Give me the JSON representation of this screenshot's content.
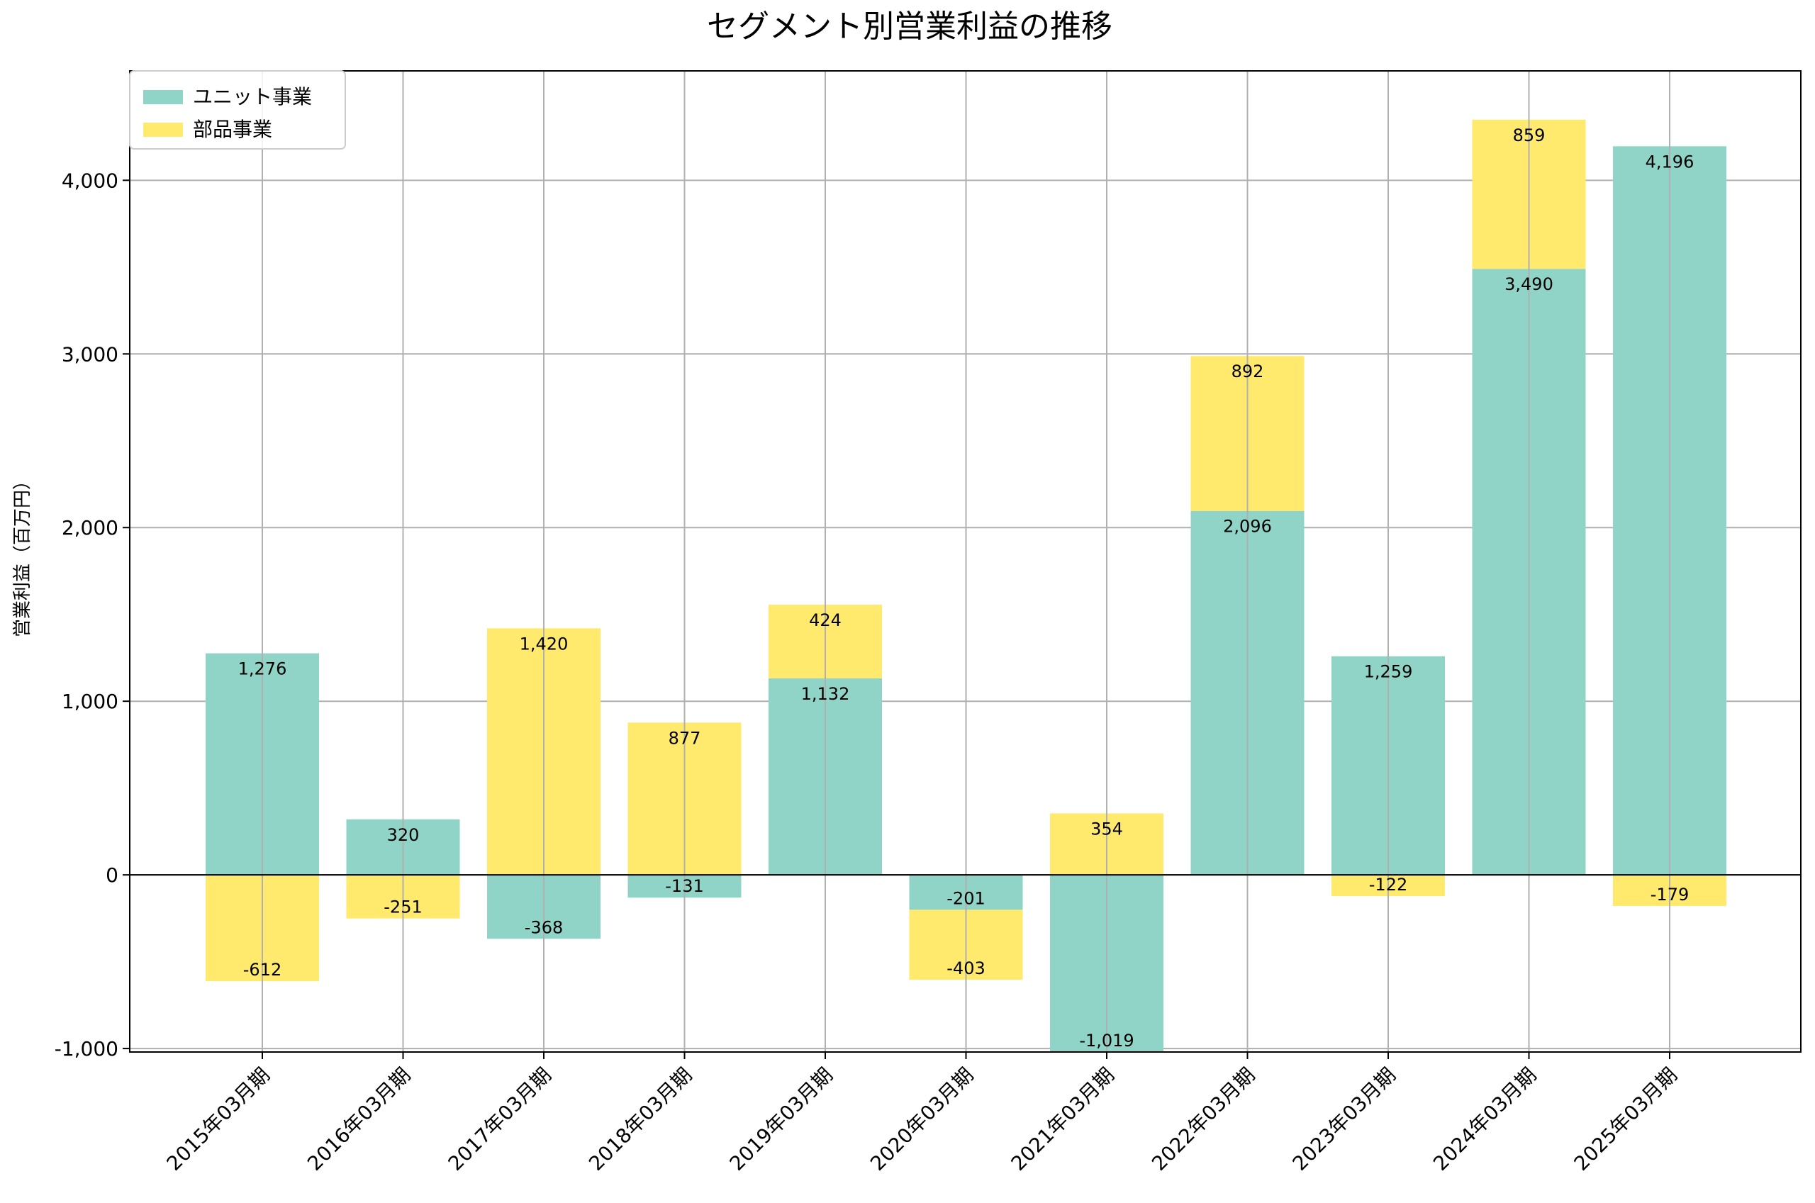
{
  "chart_data": {
    "type": "bar",
    "stacked": true,
    "title": "セグメント別営業利益の推移",
    "xlabel": "",
    "ylabel": "営業利益（百万円）",
    "categories": [
      "2015年03月期",
      "2016年03月期",
      "2017年03月期",
      "2018年03月期",
      "2019年03月期",
      "2020年03月期",
      "2021年03月期",
      "2022年03月期",
      "2023年03月期",
      "2024年03月期",
      "2025年03月期"
    ],
    "series": [
      {
        "name": "ユニット事業",
        "color": "#8fd4c7",
        "values": [
          1276,
          320,
          -368,
          -131,
          1132,
          -201,
          -1019,
          2096,
          1259,
          3490,
          4196
        ],
        "labels": [
          "1,276",
          "320",
          "-368",
          "-131",
          "1,132",
          "-201",
          "-1,019",
          "2,096",
          "1,259",
          "3,490",
          "4,196"
        ]
      },
      {
        "name": "部品事業",
        "color": "#ffea6e",
        "values": [
          -612,
          -251,
          1420,
          877,
          424,
          -403,
          354,
          892,
          -122,
          859,
          -179
        ],
        "labels": [
          "-612",
          "-251",
          "1,420",
          "877",
          "424",
          "-403",
          "354",
          "892",
          "-122",
          "859",
          "-179"
        ]
      }
    ],
    "ylim": [
      -1020,
      4630
    ],
    "yticks": [
      -1000,
      0,
      1000,
      2000,
      3000,
      4000
    ],
    "ytick_labels": [
      "-1,000",
      "0",
      "1,000",
      "2,000",
      "3,000",
      "4,000"
    ],
    "grid": true,
    "legend": "top-left"
  }
}
